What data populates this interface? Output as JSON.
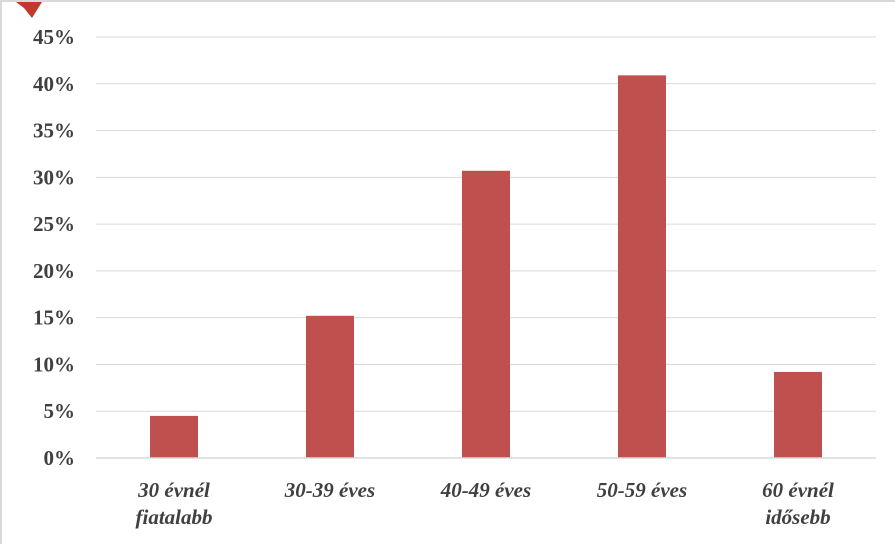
{
  "chart_data": {
    "type": "bar",
    "categories": [
      [
        "30 évnél",
        "fiatalabb"
      ],
      [
        "30-39 éves"
      ],
      [
        "40-49 éves"
      ],
      [
        "50-59 éves"
      ],
      [
        "60 évnél",
        "idősebb"
      ]
    ],
    "values": [
      4.5,
      15.2,
      30.7,
      40.9,
      9.2
    ],
    "ylim": [
      0,
      45
    ],
    "yticks": [
      0,
      5,
      10,
      15,
      20,
      25,
      30,
      35,
      40,
      45
    ],
    "ytick_labels": [
      "0%",
      "5%",
      "10%",
      "15%",
      "20%",
      "25%",
      "30%",
      "35%",
      "40%",
      "45%"
    ],
    "bar_color": "#c0504d",
    "grid": true,
    "grid_color": "#d9d9d9",
    "title": "",
    "xlabel": "",
    "ylabel": ""
  }
}
